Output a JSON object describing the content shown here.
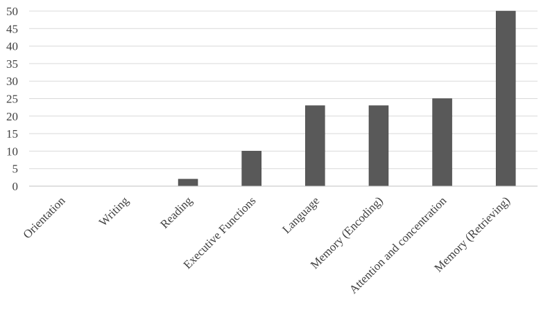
{
  "chart_data": {
    "type": "bar",
    "title": "",
    "xlabel": "",
    "ylabel": "",
    "categories": [
      "Orientation",
      "Writing",
      "Reading",
      "Executive Functions",
      "Language",
      "Memory (Encoding)",
      "Attention and concentration",
      "Memory (Retrieving)"
    ],
    "values": [
      0,
      0,
      2,
      10,
      23,
      23,
      25,
      50
    ],
    "ylim": [
      0,
      50
    ],
    "yticks": [
      0,
      5,
      10,
      15,
      20,
      25,
      30,
      35,
      40,
      45,
      50
    ],
    "grid": true,
    "legend": "none",
    "bar_color": "#595959",
    "grid_color": "#d9d9d9"
  }
}
